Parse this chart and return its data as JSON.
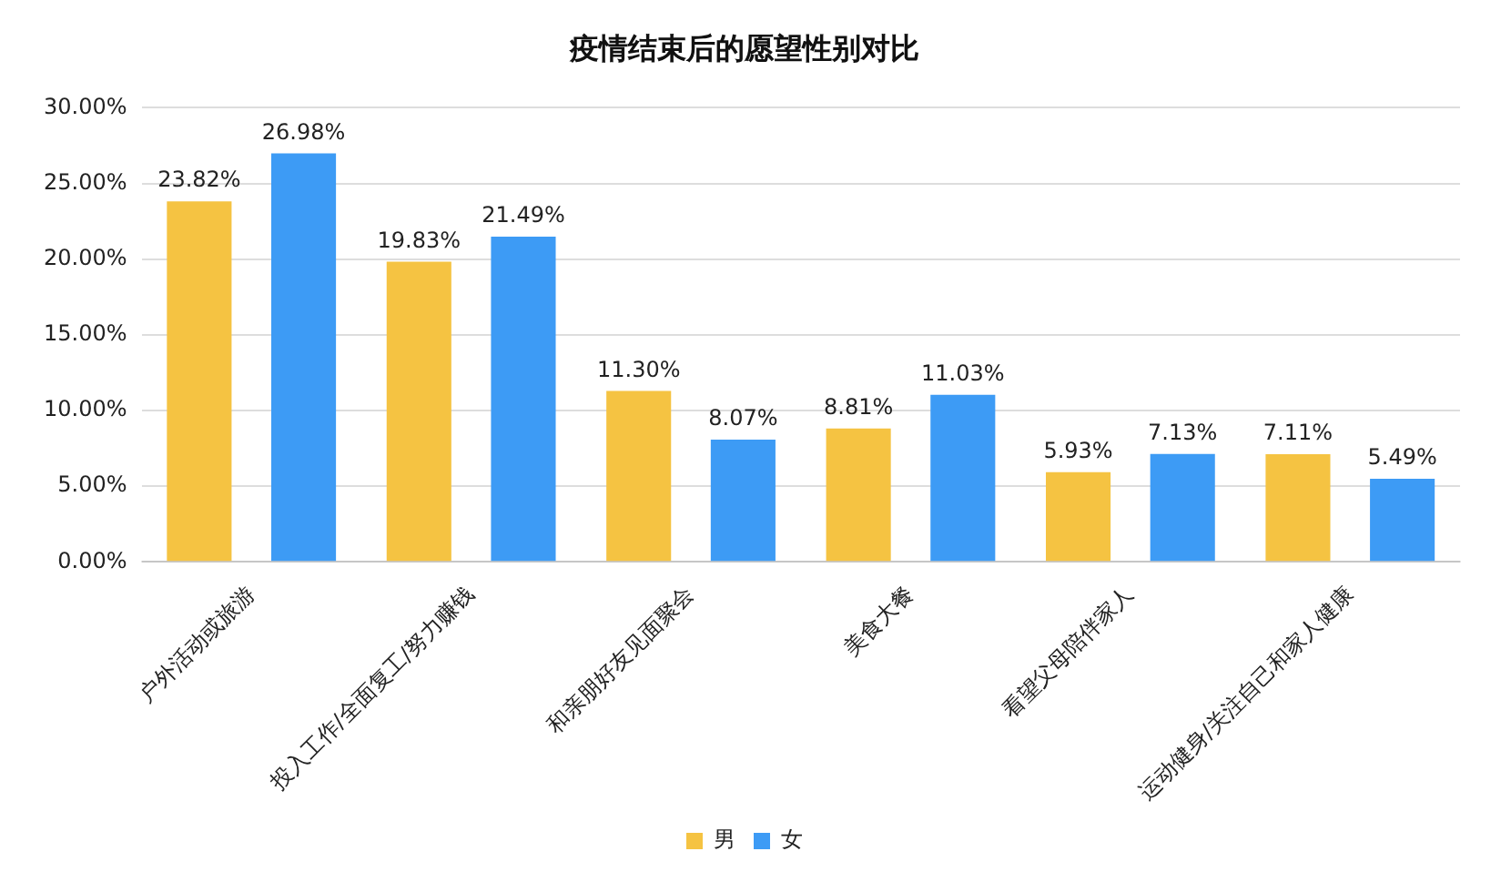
{
  "chart_data": {
    "type": "bar",
    "title": "疫情结束后的愿望性别对比",
    "categories": [
      "户外活动或旅游",
      "投入工作/全面复工/努力赚钱",
      "和亲朋好友见面聚会",
      "美食大餐",
      "看望父母陪伴家人",
      "运动健身/关注自己和家人健康"
    ],
    "series": [
      {
        "name": "男",
        "color": "#f5c342",
        "values": [
          23.82,
          19.83,
          11.3,
          8.81,
          5.93,
          7.11
        ],
        "value_labels": [
          "23.82%",
          "19.83%",
          "11.30%",
          "8.81%",
          "5.93%",
          "7.11%"
        ]
      },
      {
        "name": "女",
        "color": "#3d9bf5",
        "values": [
          26.98,
          21.49,
          8.07,
          11.03,
          7.13,
          5.49
        ],
        "value_labels": [
          "26.98%",
          "21.49%",
          "8.07%",
          "11.03%",
          "7.13%",
          "5.49%"
        ]
      }
    ],
    "ylim": [
      0,
      30
    ],
    "yticks": [
      {
        "value": 0,
        "label": "0.00%"
      },
      {
        "value": 5,
        "label": "5.00%"
      },
      {
        "value": 10,
        "label": "10.00%"
      },
      {
        "value": 15,
        "label": "15.00%"
      },
      {
        "value": 20,
        "label": "20.00%"
      },
      {
        "value": 25,
        "label": "25.00%"
      },
      {
        "value": 30,
        "label": "30.00%"
      }
    ],
    "grid": "y",
    "legend": "bottom"
  }
}
